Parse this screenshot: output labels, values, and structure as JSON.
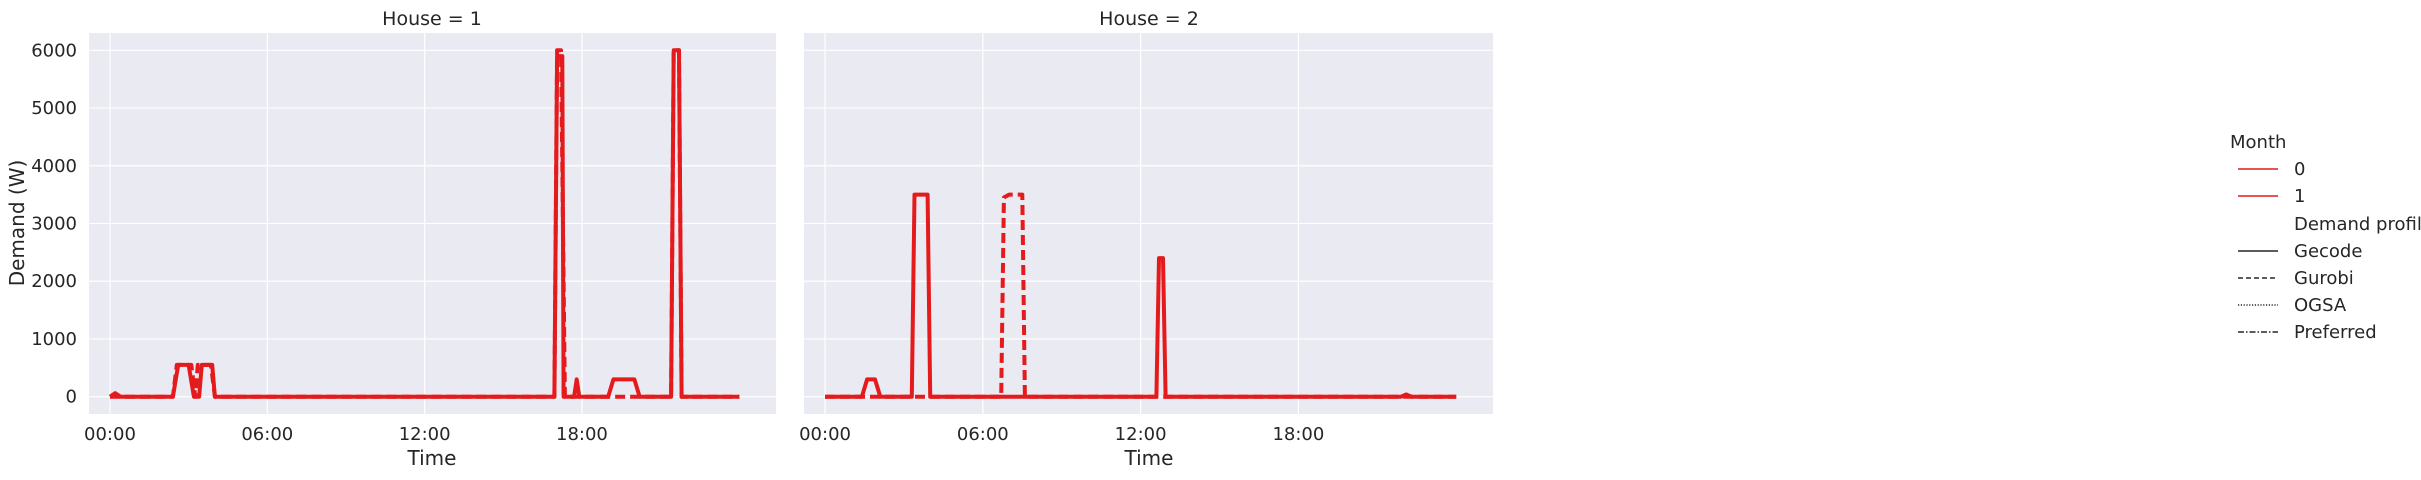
{
  "colors": {
    "panel_bg": "#eaeaf2",
    "grid": "#ffffff",
    "line": "#e41a1c",
    "text": "#262626"
  },
  "ylabel": "Demand (W)",
  "chart_data": [
    {
      "type": "line",
      "title": "House = 1",
      "xlabel": "Time",
      "ylabel": "Demand (W)",
      "x_unit": "hours since 00:00",
      "xlim": [
        -0.8,
        25.4
      ],
      "ylim": [
        -300,
        6300
      ],
      "xticks": [
        "00:00",
        "06:00",
        "12:00",
        "18:00"
      ],
      "yticks": [
        "0",
        "1000",
        "2000",
        "3000",
        "4000",
        "5000",
        "6000"
      ],
      "grid": true,
      "series": [
        {
          "month": "0",
          "profile": "Gecode",
          "dash": "solid",
          "points": [
            [
              0,
              0
            ],
            [
              0.2,
              60
            ],
            [
              0.4,
              0
            ],
            [
              2.4,
              0
            ],
            [
              2.6,
              550
            ],
            [
              3.0,
              550
            ],
            [
              3.2,
              0
            ],
            [
              3.4,
              0
            ],
            [
              3.5,
              550
            ],
            [
              3.9,
              550
            ],
            [
              4.0,
              0
            ],
            [
              16.95,
              0
            ],
            [
              17.05,
              5900
            ],
            [
              17.25,
              5900
            ],
            [
              17.3,
              0
            ],
            [
              17.7,
              0
            ],
            [
              17.8,
              300
            ],
            [
              17.9,
              0
            ],
            [
              19.0,
              0
            ],
            [
              19.2,
              300
            ],
            [
              20.0,
              300
            ],
            [
              20.2,
              0
            ],
            [
              21.4,
              0
            ],
            [
              21.5,
              6000
            ],
            [
              21.7,
              6000
            ],
            [
              21.8,
              0
            ],
            [
              24.0,
              0
            ]
          ]
        },
        {
          "month": "1",
          "profile": "Gurobi",
          "dash": "dashed",
          "points": [
            [
              0,
              0
            ],
            [
              2.4,
              0
            ],
            [
              2.55,
              550
            ],
            [
              3.1,
              550
            ],
            [
              3.25,
              0
            ],
            [
              3.35,
              550
            ],
            [
              3.85,
              550
            ],
            [
              4.0,
              0
            ],
            [
              16.95,
              0
            ],
            [
              17.05,
              6000
            ],
            [
              17.2,
              6000
            ],
            [
              17.35,
              0
            ],
            [
              21.4,
              0
            ],
            [
              21.5,
              6000
            ],
            [
              21.7,
              6000
            ],
            [
              21.8,
              0
            ],
            [
              24.0,
              0
            ]
          ]
        }
      ]
    },
    {
      "type": "line",
      "title": "House = 2",
      "xlabel": "Time",
      "ylabel": "",
      "x_unit": "hours since 00:00",
      "xlim": [
        -0.8,
        25.4
      ],
      "ylim": [
        -300,
        6300
      ],
      "xticks": [
        "00:00",
        "06:00",
        "12:00",
        "18:00"
      ],
      "yticks": [],
      "grid": true,
      "series": [
        {
          "month": "0",
          "profile": "Gecode",
          "dash": "solid",
          "points": [
            [
              0,
              0
            ],
            [
              1.4,
              0
            ],
            [
              1.6,
              300
            ],
            [
              1.9,
              300
            ],
            [
              2.1,
              0
            ],
            [
              3.3,
              0
            ],
            [
              3.4,
              3500
            ],
            [
              3.9,
              3500
            ],
            [
              4.0,
              0
            ],
            [
              12.6,
              0
            ],
            [
              12.7,
              2400
            ],
            [
              12.85,
              2400
            ],
            [
              12.95,
              0
            ],
            [
              21.9,
              0
            ],
            [
              22.1,
              40
            ],
            [
              22.3,
              0
            ],
            [
              24.0,
              0
            ]
          ]
        },
        {
          "month": "1",
          "profile": "Gurobi",
          "dash": "dashed",
          "points": [
            [
              0,
              0
            ],
            [
              6.7,
              0
            ],
            [
              6.8,
              3450
            ],
            [
              7.0,
              3500
            ],
            [
              7.5,
              3500
            ],
            [
              7.6,
              0
            ],
            [
              24.0,
              0
            ]
          ]
        }
      ]
    }
  ],
  "legend": {
    "placement": "right",
    "hue_title": "Month",
    "hue_items": [
      {
        "label": "0",
        "color": "#e41a1c"
      },
      {
        "label": "1",
        "color": "#e41a1c"
      }
    ],
    "style_title": "Demand profile",
    "style_items": [
      {
        "label": "Gecode",
        "dash": "solid"
      },
      {
        "label": "Gurobi",
        "dash": "dashed"
      },
      {
        "label": "OGSA",
        "dash": "dotted"
      },
      {
        "label": "Preferred",
        "dash": "dashdot"
      }
    ]
  }
}
